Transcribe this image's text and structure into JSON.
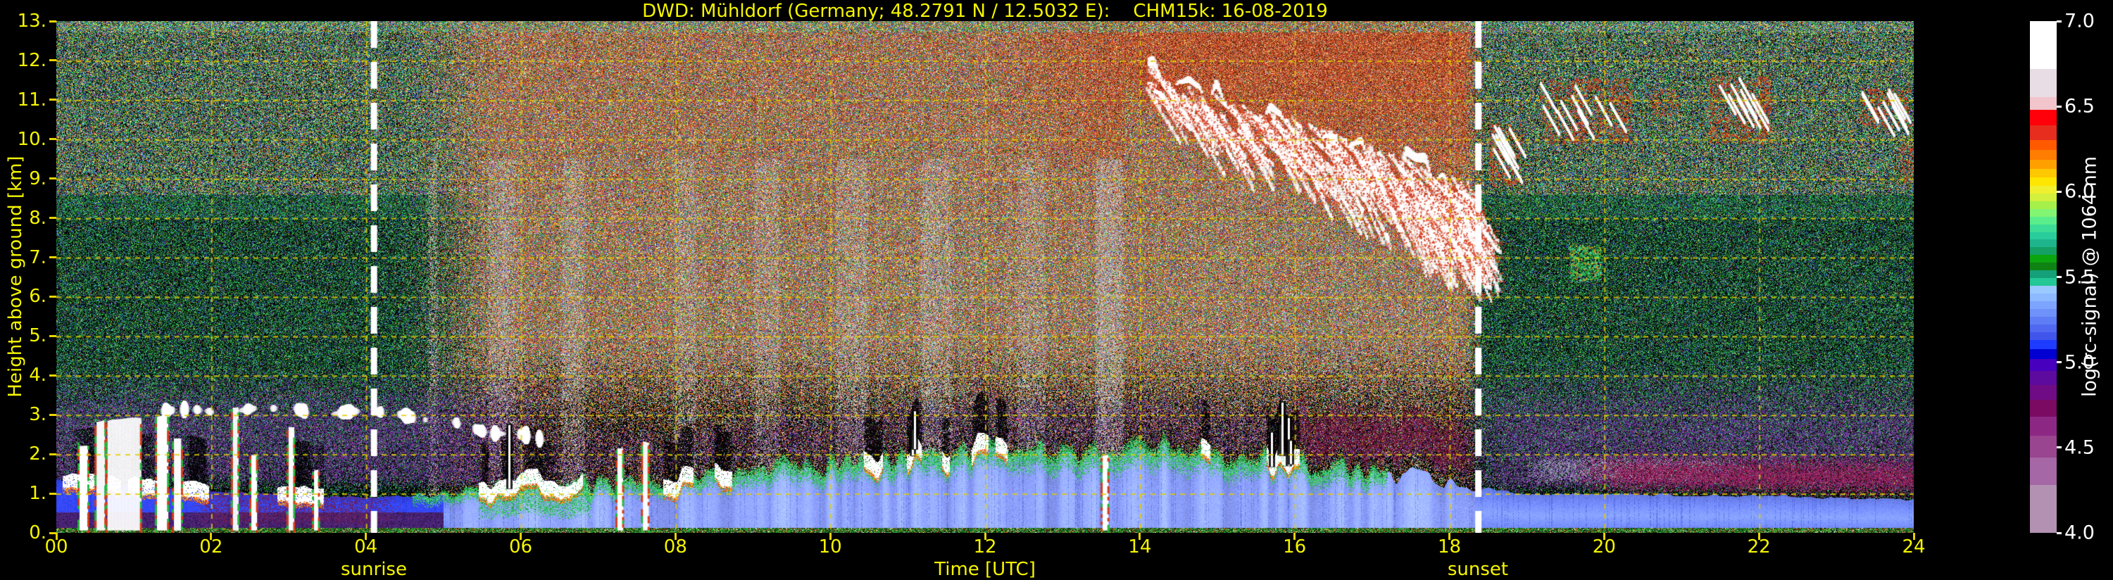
{
  "chart_data": {
    "type": "heatmap",
    "title": "DWD: Mühldorf (Germany; 48.2791 N / 12.5032 E):    CHM15k: 16-08-2019",
    "xlabel": "Time [UTC]",
    "ylabel": "Height above ground [km]",
    "x_range": [
      0,
      24
    ],
    "y_range": [
      0,
      13
    ],
    "x_ticks": [
      {
        "v": 0,
        "label": "00"
      },
      {
        "v": 2,
        "label": "02"
      },
      {
        "v": 4,
        "label": "04"
      },
      {
        "v": 6,
        "label": "06"
      },
      {
        "v": 8,
        "label": "08"
      },
      {
        "v": 10,
        "label": "10"
      },
      {
        "v": 12,
        "label": "12"
      },
      {
        "v": 14,
        "label": "14"
      },
      {
        "v": 16,
        "label": "16"
      },
      {
        "v": 18,
        "label": "18"
      },
      {
        "v": 20,
        "label": "20"
      },
      {
        "v": 22,
        "label": "22"
      },
      {
        "v": 24,
        "label": "24"
      }
    ],
    "y_ticks": [
      {
        "v": 0,
        "label": "0."
      },
      {
        "v": 1,
        "label": "1."
      },
      {
        "v": 2,
        "label": "2."
      },
      {
        "v": 3,
        "label": "3."
      },
      {
        "v": 4,
        "label": "4."
      },
      {
        "v": 5,
        "label": "5."
      },
      {
        "v": 6,
        "label": "6."
      },
      {
        "v": 7,
        "label": "7."
      },
      {
        "v": 8,
        "label": "8."
      },
      {
        "v": 9,
        "label": "9."
      },
      {
        "v": 10,
        "label": "10."
      },
      {
        "v": 11,
        "label": "11."
      },
      {
        "v": 12,
        "label": "12."
      },
      {
        "v": 13,
        "label": "13."
      }
    ],
    "grid": {
      "color": "#decb00",
      "h_lines_km": [
        1,
        2,
        3,
        4,
        5,
        6,
        7,
        8,
        9,
        10,
        11,
        12
      ],
      "v_lines_utc": [
        2,
        4,
        6,
        8,
        10,
        12,
        14,
        16,
        18,
        20,
        22
      ]
    },
    "events": {
      "sunrise": {
        "label": "sunrise",
        "time_utc": 4.1
      },
      "sunset": {
        "label": "sunset",
        "time_utc": 18.37
      }
    },
    "colorbar": {
      "label": "log(rc-signal) @ 1064 nm",
      "range": [
        4.0,
        7.0
      ],
      "ticks": [
        {
          "v": 7.0,
          "label": "7.0"
        },
        {
          "v": 6.5,
          "label": "6.5"
        },
        {
          "v": 6.0,
          "label": "6.0"
        },
        {
          "v": 5.5,
          "label": "5.5"
        },
        {
          "v": 5.0,
          "label": "5.0"
        },
        {
          "v": 4.5,
          "label": "4.5"
        },
        {
          "v": 4.0,
          "label": "4.0"
        }
      ],
      "palette": [
        {
          "color": "#ffffff",
          "w": 87
        },
        {
          "color": "#e8dde4",
          "w": 50
        },
        {
          "color": "#f2c4cc",
          "w": 23
        },
        {
          "color": "#ff000a",
          "w": 28
        },
        {
          "color": "#e62d1e",
          "w": 27
        },
        {
          "color": "#ff5a00",
          "w": 17
        },
        {
          "color": "#ff7d00",
          "w": 18
        },
        {
          "color": "#ffa000",
          "w": 17
        },
        {
          "color": "#ffc800",
          "w": 15
        },
        {
          "color": "#ffe600",
          "w": 15
        },
        {
          "color": "#f0f030",
          "w": 14
        },
        {
          "color": "#d2f03c",
          "w": 14
        },
        {
          "color": "#a5f04b",
          "w": 14
        },
        {
          "color": "#82f573",
          "w": 14
        },
        {
          "color": "#5aed8c",
          "w": 14
        },
        {
          "color": "#3cdc96",
          "w": 14
        },
        {
          "color": "#28cd9b",
          "w": 13
        },
        {
          "color": "#1eb48c",
          "w": 14
        },
        {
          "color": "#14a064",
          "w": 14
        },
        {
          "color": "#0aa50f",
          "w": 14
        },
        {
          "color": "#0f8214",
          "w": 14
        },
        {
          "color": "#14a078",
          "w": 14
        },
        {
          "color": "#23c896",
          "w": 14
        },
        {
          "color": "#9bc8ff",
          "w": 14
        },
        {
          "color": "#8cb9ff",
          "w": 14
        },
        {
          "color": "#7da5ff",
          "w": 14
        },
        {
          "color": "#6e91fa",
          "w": 14
        },
        {
          "color": "#5f7df5",
          "w": 14
        },
        {
          "color": "#5069f0",
          "w": 14
        },
        {
          "color": "#4155eb",
          "w": 14
        },
        {
          "color": "#1e3cff",
          "w": 16
        },
        {
          "color": "#0000d2",
          "w": 18
        },
        {
          "color": "#4600be",
          "w": 22
        },
        {
          "color": "#5c0b9e",
          "w": 25
        },
        {
          "color": "#6f0c85",
          "w": 27
        },
        {
          "color": "#7a0a62",
          "w": 30
        },
        {
          "color": "#8c2884",
          "w": 34
        },
        {
          "color": "#99458f",
          "w": 40
        },
        {
          "color": "#a567a5",
          "w": 50
        },
        {
          "color": "#b291b2",
          "w": 86
        }
      ]
    },
    "boundary_layer_km": [
      [
        0,
        1.3
      ],
      [
        2,
        1.0
      ],
      [
        4,
        0.85
      ],
      [
        5.8,
        1.05
      ],
      [
        8,
        1.3
      ],
      [
        10,
        1.7
      ],
      [
        12,
        2.0
      ],
      [
        14,
        2.1
      ],
      [
        16,
        1.8
      ],
      [
        17.5,
        1.4
      ],
      [
        19,
        1.0
      ],
      [
        22,
        0.95
      ],
      [
        24,
        0.85
      ]
    ],
    "features": {
      "low_cloud_columns": [
        {
          "t0": 0.3,
          "t1": 0.4,
          "top": 2.3
        },
        {
          "t0": 0.52,
          "t1": 0.62,
          "top": 2.9
        },
        {
          "t0": 0.66,
          "t1": 1.08,
          "top": 2.85,
          "solid": true
        },
        {
          "t0": 1.3,
          "t1": 1.43,
          "top": 2.95
        },
        {
          "t0": 1.52,
          "t1": 1.61,
          "top": 2.3
        },
        {
          "t0": 2.28,
          "t1": 2.34,
          "top": 3.15
        },
        {
          "t0": 2.52,
          "t1": 2.58,
          "top": 1.95
        },
        {
          "t0": 3.0,
          "t1": 3.06,
          "top": 2.6
        },
        {
          "t0": 3.33,
          "t1": 3.38,
          "top": 1.55
        },
        {
          "t0": 7.25,
          "t1": 7.31,
          "top": 2.1
        },
        {
          "t0": 7.58,
          "t1": 7.64,
          "top": 2.3
        },
        {
          "t0": 13.52,
          "t1": 13.58,
          "top": 1.9
        }
      ],
      "morning_streaks": {
        "t0": 1.35,
        "t1": 6.3,
        "h": 3.05,
        "h_end": 2.35
      },
      "daytime_haze_columns": [
        [
          4.78,
          4.95
        ],
        [
          5.55,
          5.95
        ],
        [
          6.5,
          6.85
        ],
        [
          7.95,
          8.3
        ],
        [
          9.0,
          9.35
        ],
        [
          10.05,
          10.5
        ],
        [
          11.15,
          11.6
        ],
        [
          12.4,
          12.8
        ],
        [
          13.4,
          13.8
        ]
      ],
      "cirrus_descent": {
        "t0": 13.85,
        "t1": 18.25,
        "top0": 11.7,
        "top1": 8.6,
        "thickness": 2.2
      },
      "evening_cirrus_patches": [
        {
          "t0": 18.5,
          "t1": 18.95,
          "h0": 8.8,
          "h1": 10.4,
          "white": true
        },
        {
          "t0": 19.15,
          "t1": 20.35,
          "h0": 9.9,
          "h1": 11.55,
          "white": true
        },
        {
          "t0": 20.6,
          "t1": 20.95,
          "h0": 10.6,
          "h1": 11.3
        },
        {
          "t0": 21.35,
          "t1": 22.15,
          "h0": 9.9,
          "h1": 11.6,
          "white": true
        },
        {
          "t0": 23.3,
          "t1": 23.95,
          "h0": 10.3,
          "h1": 11.3,
          "white": true
        },
        {
          "t0": 23.8,
          "t1": 24.0,
          "h0": 8.9,
          "h1": 9.9
        }
      ],
      "mid_blob": {
        "t0": 19.55,
        "t1": 19.95,
        "h0": 6.4,
        "h1": 7.3
      }
    }
  }
}
